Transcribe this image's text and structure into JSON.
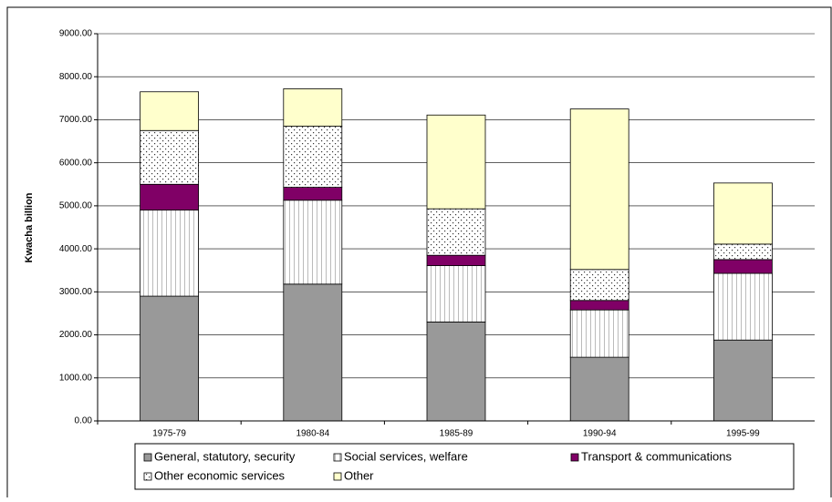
{
  "chart_data": {
    "type": "stacked-bar",
    "y_label": "Kwacha billion",
    "categories": [
      "1975-79",
      "1980-84",
      "1985-89",
      "1990-94",
      "1995-99"
    ],
    "series": [
      {
        "name": "General, statutory, security",
        "color": "#999999",
        "values": [
          2900,
          3180,
          2300,
          1480,
          1880
        ]
      },
      {
        "name": "Social services, welfare",
        "color": "#ffffff",
        "values": [
          2000,
          1950,
          1310,
          1100,
          1550
        ]
      },
      {
        "name": "Transport & communications",
        "color": "#800066",
        "values": [
          600,
          300,
          240,
          220,
          320
        ]
      },
      {
        "name": "Other economic services",
        "color": "#ffffff",
        "values": [
          1250,
          1420,
          1080,
          720,
          360
        ]
      },
      {
        "name": "Other",
        "color": "#ffffcc",
        "values": [
          900,
          870,
          2180,
          3730,
          1420
        ]
      }
    ],
    "ylim": [
      0,
      9000
    ],
    "yticks": [
      {
        "value": 0,
        "label": "0.00"
      },
      {
        "value": 1000,
        "label": "1000.00"
      },
      {
        "value": 2000,
        "label": "2000.00"
      },
      {
        "value": 3000,
        "label": "3000.00"
      },
      {
        "value": 4000,
        "label": "4000.00"
      },
      {
        "value": 5000,
        "label": "5000.00"
      },
      {
        "value": 6000,
        "label": "6000.00"
      },
      {
        "value": 7000,
        "label": "7000.00"
      },
      {
        "value": 8000,
        "label": "8000.00"
      },
      {
        "value": 9000,
        "label": "9000.00"
      }
    ],
    "grid": true
  }
}
